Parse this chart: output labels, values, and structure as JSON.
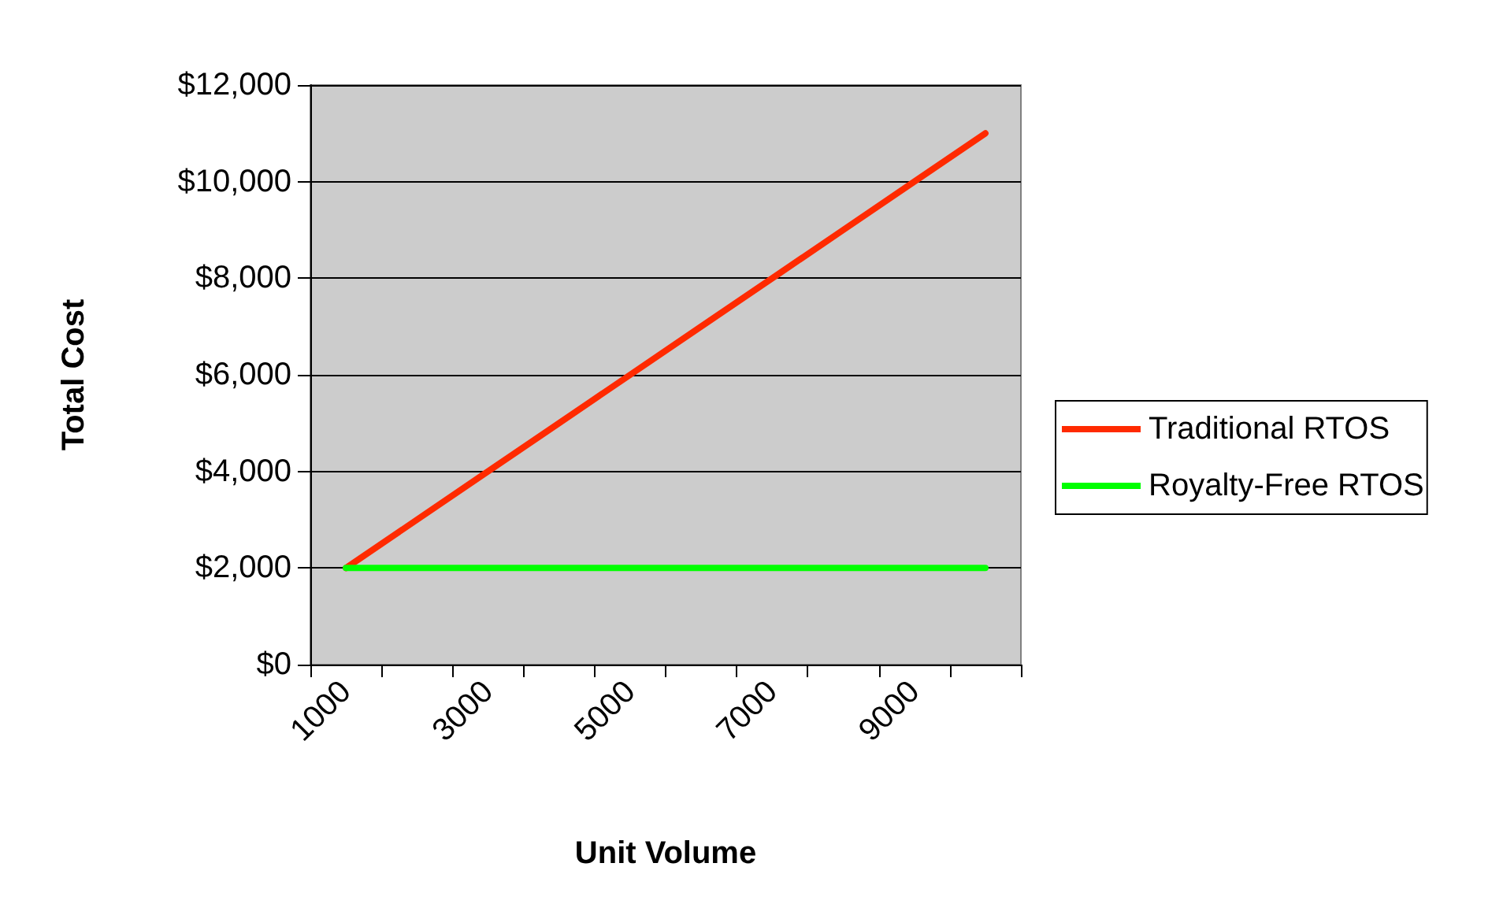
{
  "chart_data": {
    "type": "line",
    "xlabel": "Unit Volume",
    "ylabel": "Total Cost",
    "categories": [
      "1000",
      null,
      "3000",
      null,
      "5000",
      null,
      "7000",
      null,
      "9000",
      null
    ],
    "series": [
      {
        "name": "Traditional RTOS",
        "color": "#ff2a00",
        "values": [
          2000,
          3000,
          4000,
          5000,
          6000,
          7000,
          8000,
          9000,
          10000,
          11000
        ]
      },
      {
        "name": "Royalty-Free RTOS",
        "color": "#00ff00",
        "values": [
          2000,
          2000,
          2000,
          2000,
          2000,
          2000,
          2000,
          2000,
          2000,
          2000
        ]
      }
    ],
    "ylim": [
      0,
      12000
    ],
    "yticks": [
      {
        "value": 0,
        "label": "$0"
      },
      {
        "value": 2000,
        "label": "$2,000"
      },
      {
        "value": 4000,
        "label": "$4,000"
      },
      {
        "value": 6000,
        "label": "$6,000"
      },
      {
        "value": 8000,
        "label": "$8,000"
      },
      {
        "value": 10000,
        "label": "$10,000"
      },
      {
        "value": 12000,
        "label": "$12,000"
      }
    ],
    "grid": "y",
    "legend": "right",
    "marker": "none",
    "line_style": "solid"
  }
}
